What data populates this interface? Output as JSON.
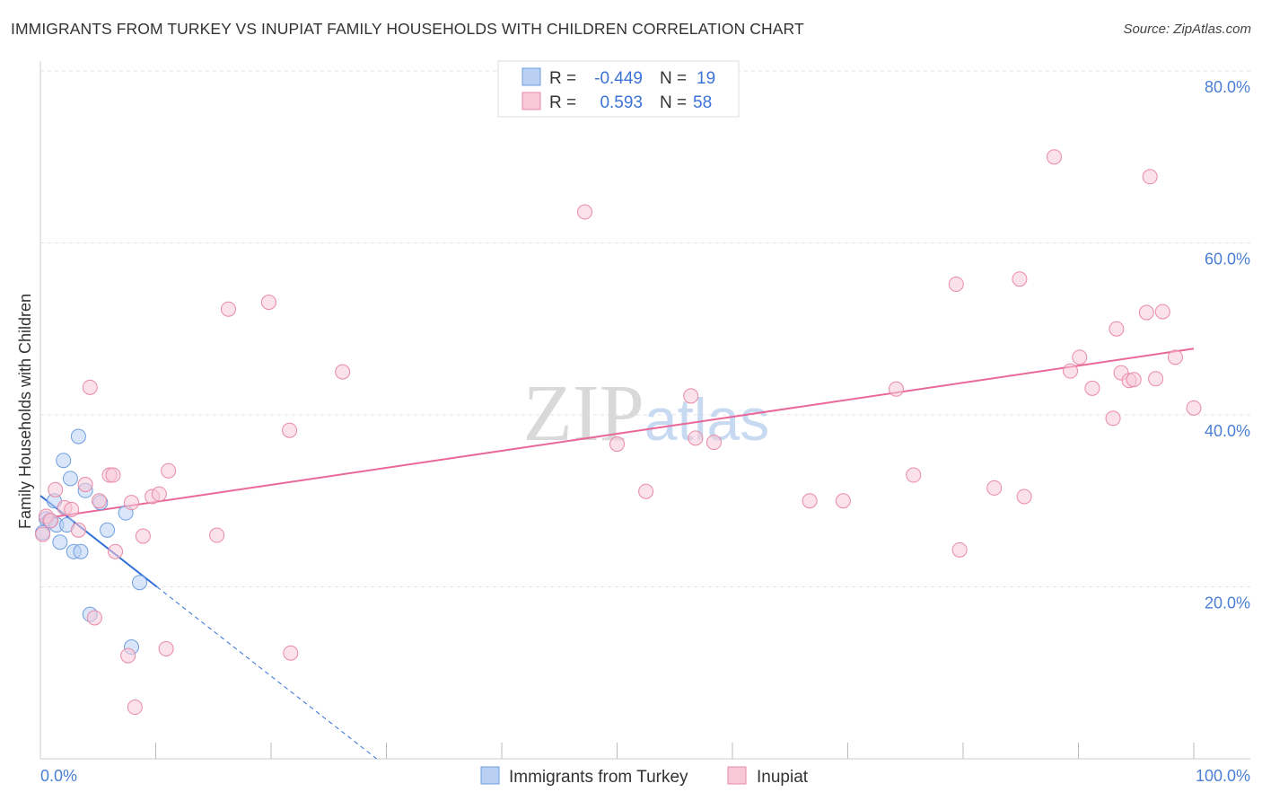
{
  "title": "IMMIGRANTS FROM TURKEY VS INUPIAT FAMILY HOUSEHOLDS WITH CHILDREN CORRELATION CHART",
  "source": "Source: ZipAtlas.com",
  "watermark": "ZIPatlas",
  "chart_data": {
    "type": "scatter",
    "title": "IMMIGRANTS FROM TURKEY VS INUPIAT FAMILY HOUSEHOLDS WITH CHILDREN CORRELATION CHART",
    "xlabel": "",
    "ylabel": "Family Households with Children",
    "xlim": [
      0,
      100
    ],
    "ylim": [
      0,
      80
    ],
    "x_tick_labels": [
      "0.0%",
      "100.0%"
    ],
    "y_tick_labels": [
      "80.0%",
      "60.0%",
      "40.0%",
      "20.0%"
    ],
    "y_ticks": [
      80,
      60,
      40,
      20
    ],
    "grid": true,
    "legend_bottom": [
      "Immigrants from Turkey",
      "Inupiat"
    ],
    "stats": [
      {
        "r_label": "R =",
        "r": "-0.449",
        "n_label": "N =",
        "n": "19"
      },
      {
        "r_label": "R =",
        "r": "0.593",
        "n_label": "N =",
        "n": "58"
      }
    ],
    "series": [
      {
        "name": "Immigrants from Turkey",
        "color": "#6f9fe0",
        "fill": "#b9d0f2",
        "trend": {
          "x0": 0,
          "y0": 30.6,
          "x1": 10.1,
          "y1": 20.0,
          "dash_to_x": 29.2
        },
        "points": [
          [
            0.5,
            27.9
          ],
          [
            0.8,
            27.7
          ],
          [
            1.2,
            30.0
          ],
          [
            1.4,
            27.2
          ],
          [
            1.7,
            25.2
          ],
          [
            2.0,
            34.7
          ],
          [
            2.3,
            27.2
          ],
          [
            2.6,
            32.6
          ],
          [
            2.9,
            24.1
          ],
          [
            3.3,
            37.5
          ],
          [
            3.5,
            24.1
          ],
          [
            3.9,
            31.2
          ],
          [
            4.3,
            16.8
          ],
          [
            5.2,
            29.8
          ],
          [
            5.8,
            26.6
          ],
          [
            7.4,
            28.6
          ],
          [
            7.9,
            13.0
          ],
          [
            8.6,
            20.5
          ],
          [
            0.2,
            26.3
          ]
        ]
      },
      {
        "name": "Inupiat",
        "color": "#e88aa8",
        "fill": "#f7c9d7",
        "trend": {
          "x0": 0,
          "y0": 27.9,
          "x1": 100,
          "y1": 47.7
        },
        "points": [
          [
            0.2,
            26.1
          ],
          [
            0.5,
            28.2
          ],
          [
            0.9,
            27.7
          ],
          [
            1.3,
            31.3
          ],
          [
            2.1,
            29.2
          ],
          [
            2.7,
            29.0
          ],
          [
            3.3,
            26.6
          ],
          [
            3.9,
            31.9
          ],
          [
            4.3,
            43.2
          ],
          [
            4.7,
            16.4
          ],
          [
            5.1,
            30.0
          ],
          [
            6.0,
            33.0
          ],
          [
            6.3,
            33.0
          ],
          [
            6.5,
            24.1
          ],
          [
            7.6,
            12.0
          ],
          [
            7.9,
            29.8
          ],
          [
            8.2,
            6.0
          ],
          [
            8.9,
            25.9
          ],
          [
            9.7,
            30.5
          ],
          [
            10.3,
            30.8
          ],
          [
            10.9,
            12.8
          ],
          [
            11.1,
            33.5
          ],
          [
            15.3,
            26.0
          ],
          [
            16.3,
            52.3
          ],
          [
            19.8,
            53.1
          ],
          [
            21.6,
            38.2
          ],
          [
            21.7,
            12.3
          ],
          [
            26.2,
            45.0
          ],
          [
            47.2,
            63.6
          ],
          [
            50.0,
            36.6
          ],
          [
            52.5,
            31.1
          ],
          [
            56.4,
            42.2
          ],
          [
            56.8,
            37.3
          ],
          [
            58.4,
            36.8
          ],
          [
            66.7,
            30.0
          ],
          [
            69.6,
            30.0
          ],
          [
            74.2,
            43.0
          ],
          [
            75.7,
            33.0
          ],
          [
            79.4,
            55.2
          ],
          [
            79.7,
            24.3
          ],
          [
            82.7,
            31.5
          ],
          [
            84.9,
            55.8
          ],
          [
            85.3,
            30.5
          ],
          [
            87.9,
            70.0
          ],
          [
            89.3,
            45.1
          ],
          [
            90.1,
            46.7
          ],
          [
            91.2,
            43.1
          ],
          [
            93.0,
            39.6
          ],
          [
            93.3,
            50.0
          ],
          [
            93.7,
            44.9
          ],
          [
            94.4,
            44.0
          ],
          [
            94.8,
            44.1
          ],
          [
            95.9,
            51.9
          ],
          [
            96.2,
            67.7
          ],
          [
            96.7,
            44.2
          ],
          [
            97.3,
            52.0
          ],
          [
            98.4,
            46.7
          ],
          [
            100,
            40.8
          ]
        ]
      }
    ]
  }
}
